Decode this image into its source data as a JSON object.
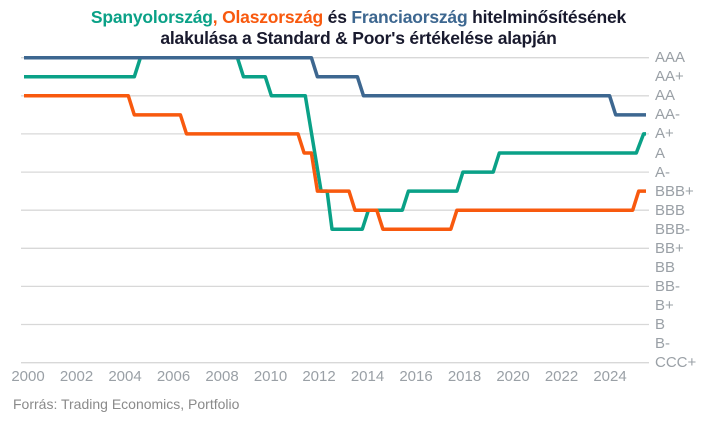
{
  "title": {
    "part1": "Spanyolország",
    "part2": ", Olaszország",
    "part3": " és ",
    "part4": "Franciaország",
    "part5": " hitelminősítésének",
    "line2": "alakulása a Standard & Poor's értékelése alapján"
  },
  "footer": {
    "source_label": "Forrás: Trading Economics, Portfolio"
  },
  "colors": {
    "spain": "#0aa187",
    "italy": "#f8590e",
    "france": "#3d6790",
    "title_dark": "#191a2e",
    "grid": "#d8d8d8",
    "axis_label": "#9aa0a6",
    "footer_text": "#8a8a8a"
  },
  "chart_data": {
    "type": "line",
    "title": "Spanyolország, Olaszország és Franciaország hitelminősítésének alakulása a Standard & Poor's értékelése alapján",
    "source": "Forrás: Trading Economics, Portfolio",
    "x_axis": {
      "start_year": 2000,
      "end_year": 2025.65,
      "tick_step_years": 2,
      "labels": [
        "2000",
        "2002",
        "2004",
        "2006",
        "2008",
        "2010",
        "2012",
        "2014",
        "2016",
        "2018",
        "2020",
        "2022",
        "2024"
      ]
    },
    "y_axis": {
      "scale": [
        "AAA",
        "AA+",
        "AA",
        "AA-",
        "A+",
        "A",
        "A-",
        "BBB+",
        "BBB",
        "BBB-",
        "BB+",
        "BB",
        "BB-",
        "B+",
        "B",
        "B-",
        "CCC+"
      ],
      "gridline_every": 2,
      "grid_on": true
    },
    "series": [
      {
        "name": "Spanyolország",
        "data_name": "spain-line",
        "color": "#0aa187",
        "points": [
          [
            2000.0,
            "AA+"
          ],
          [
            2004.55,
            "AA+"
          ],
          [
            2004.8,
            "AAA"
          ],
          [
            2008.8,
            "AAA"
          ],
          [
            2009.05,
            "AA+"
          ],
          [
            2009.95,
            "AA+"
          ],
          [
            2010.2,
            "AA"
          ],
          [
            2011.6,
            "AA"
          ],
          [
            2012.25,
            "BBB+"
          ],
          [
            2012.5,
            "BBB+"
          ],
          [
            2012.7,
            "BBB-"
          ],
          [
            2013.95,
            "BBB-"
          ],
          [
            2014.2,
            "BBB"
          ],
          [
            2015.6,
            "BBB"
          ],
          [
            2015.85,
            "BBB+"
          ],
          [
            2017.85,
            "BBB+"
          ],
          [
            2018.1,
            "A-"
          ],
          [
            2019.35,
            "A-"
          ],
          [
            2019.6,
            "A"
          ],
          [
            2025.25,
            "A"
          ],
          [
            2025.55,
            "A+"
          ],
          [
            2025.65,
            "A+"
          ]
        ]
      },
      {
        "name": "Olaszország",
        "data_name": "italy-line",
        "color": "#f8590e",
        "points": [
          [
            2000.0,
            "AA"
          ],
          [
            2004.3,
            "AA"
          ],
          [
            2004.55,
            "AA-"
          ],
          [
            2006.45,
            "AA-"
          ],
          [
            2006.7,
            "A+"
          ],
          [
            2011.3,
            "A+"
          ],
          [
            2011.55,
            "A"
          ],
          [
            2011.85,
            "A"
          ],
          [
            2012.1,
            "BBB+"
          ],
          [
            2013.4,
            "BBB+"
          ],
          [
            2013.65,
            "BBB"
          ],
          [
            2014.55,
            "BBB"
          ],
          [
            2014.8,
            "BBB-"
          ],
          [
            2017.6,
            "BBB-"
          ],
          [
            2017.85,
            "BBB"
          ],
          [
            2025.1,
            "BBB"
          ],
          [
            2025.35,
            "BBB+"
          ],
          [
            2025.65,
            "BBB+"
          ]
        ]
      },
      {
        "name": "Franciaország",
        "data_name": "france-line",
        "color": "#3d6790",
        "points": [
          [
            2000.0,
            "AAA"
          ],
          [
            2011.85,
            "AAA"
          ],
          [
            2012.1,
            "AA+"
          ],
          [
            2013.75,
            "AA+"
          ],
          [
            2014.0,
            "AA"
          ],
          [
            2024.15,
            "AA"
          ],
          [
            2024.4,
            "AA-"
          ],
          [
            2025.65,
            "AA-"
          ]
        ]
      }
    ]
  }
}
